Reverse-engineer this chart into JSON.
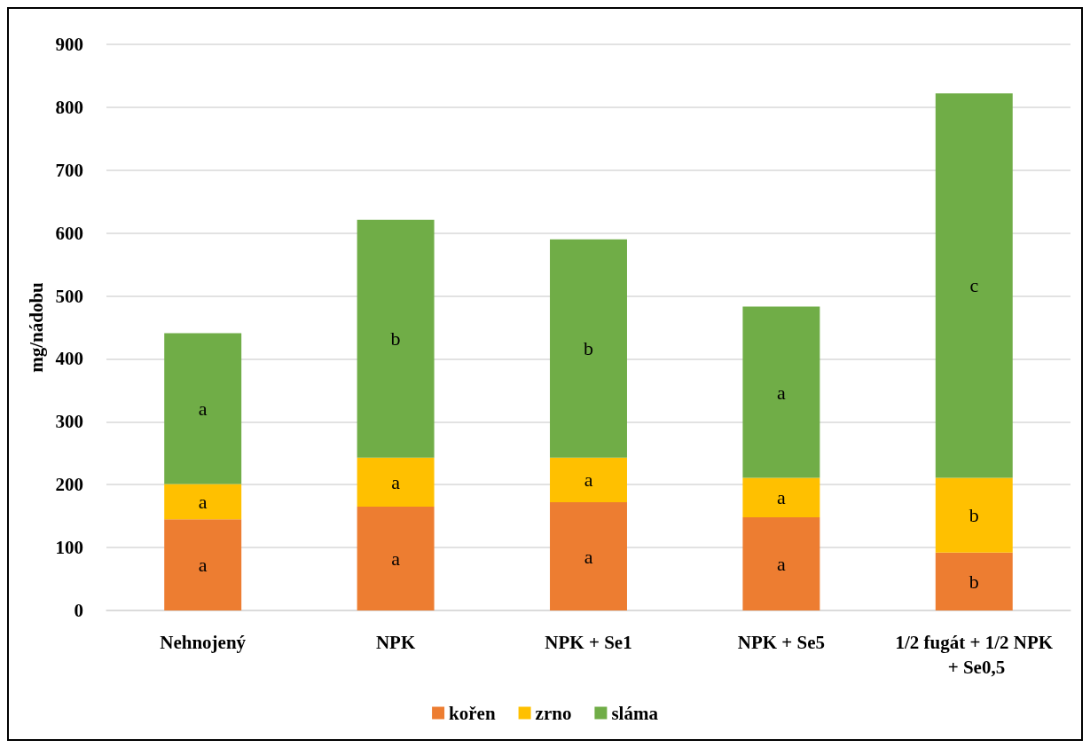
{
  "chart_data": {
    "type": "bar",
    "stacked": true,
    "ylabel": "mg/nádobu",
    "categories": [
      "Nehnojený",
      "NPK",
      "NPK + Se1",
      "NPK + Se5",
      "1/2 fugát + 1/2 NPK + Se0,5"
    ],
    "series": [
      {
        "name": "kořen",
        "color": "#ed7d31",
        "values": [
          145,
          165,
          172,
          148,
          92
        ],
        "value_labels": [
          "a",
          "a",
          "a",
          "a",
          "b"
        ]
      },
      {
        "name": "zrno",
        "color": "#ffc000",
        "values": [
          56,
          78,
          71,
          63,
          119
        ],
        "value_labels": [
          "a",
          "a",
          "a",
          "a",
          "b"
        ]
      },
      {
        "name": "sláma",
        "color": "#70ad47",
        "values": [
          240,
          378,
          347,
          272,
          611
        ],
        "value_labels": [
          "a",
          "b",
          "b",
          "a",
          "c"
        ]
      }
    ],
    "ylim": [
      0,
      900
    ],
    "yticks": [
      0,
      100,
      200,
      300,
      400,
      500,
      600,
      700,
      800,
      900
    ],
    "grid": "y",
    "legend": "bottom"
  }
}
